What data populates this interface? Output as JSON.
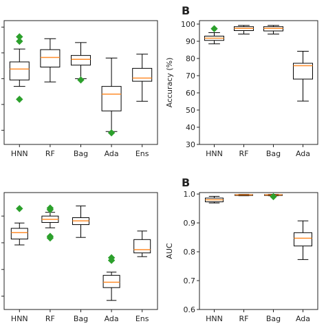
{
  "chart_data": [
    {
      "type": "box",
      "panel_label": "",
      "ylabel": "",
      "categories": [
        "HNN",
        "RF",
        "Bag",
        "Ada",
        "Ens"
      ],
      "y_tick_labels": [],
      "boxes": [
        {
          "category": "HNN",
          "whisker_low": 59.8,
          "q1": 60.8,
          "median": 62.5,
          "q3": 63.6,
          "whisker_high": 65.6,
          "fliers": [
            67.5,
            66.8,
            57.8
          ]
        },
        {
          "category": "RF",
          "whisker_low": 60.5,
          "q1": 62.8,
          "median": 64.3,
          "q3": 65.5,
          "whisker_high": 67.2,
          "fliers": []
        },
        {
          "category": "Bag",
          "whisker_low": 61.0,
          "q1": 63.1,
          "median": 64.0,
          "q3": 64.6,
          "whisker_high": 66.6,
          "fliers": [
            60.8
          ]
        },
        {
          "category": "Ada",
          "whisker_low": 52.8,
          "q1": 56.0,
          "median": 58.6,
          "q3": 59.8,
          "whisker_high": 64.2,
          "fliers": [
            52.6
          ]
        },
        {
          "category": "Ens",
          "whisker_low": 57.5,
          "q1": 60.6,
          "median": 61.1,
          "q3": 62.6,
          "whisker_high": 64.8,
          "fliers": []
        }
      ]
    },
    {
      "type": "box",
      "panel_label": "B",
      "ylabel": "Accuracy (%)",
      "categories": [
        "HNN",
        "RF",
        "Bag",
        "Ada"
      ],
      "y_tick_labels": [
        "30",
        "40",
        "50",
        "60",
        "70",
        "80",
        "90",
        "100"
      ],
      "ylim": [
        30,
        102
      ],
      "boxes": [
        {
          "category": "HNN",
          "whisker_low": 88.5,
          "q1": 90.5,
          "median": 91.8,
          "q3": 93.0,
          "whisker_high": 95.0,
          "fliers": [
            97.3
          ]
        },
        {
          "category": "RF",
          "whisker_low": 94.2,
          "q1": 96.2,
          "median": 97.5,
          "q3": 98.5,
          "whisker_high": 99.2,
          "fliers": []
        },
        {
          "category": "Bag",
          "whisker_low": 94.2,
          "q1": 96.0,
          "median": 97.5,
          "q3": 98.5,
          "whisker_high": 99.2,
          "fliers": []
        },
        {
          "category": "Ada",
          "whisker_low": 55.2,
          "q1": 68.0,
          "median": 75.8,
          "q3": 77.2,
          "whisker_high": 84.2,
          "fliers": []
        }
      ]
    },
    {
      "type": "box",
      "panel_label": "",
      "ylabel": "",
      "categories": [
        "HNN",
        "RF",
        "Bag",
        "Ada",
        "Ens"
      ],
      "y_tick_labels": [],
      "boxes": [
        {
          "category": "HNN",
          "whisker_low": 0.934,
          "q1": 0.945,
          "median": 0.957,
          "q3": 0.965,
          "whisker_high": 0.975,
          "fliers": [
            1.002
          ]
        },
        {
          "category": "RF",
          "whisker_low": 0.966,
          "q1": 0.976,
          "median": 0.982,
          "q3": 0.988,
          "whisker_high": 0.995,
          "fliers": [
            1.003,
            1.0,
            0.95,
            0.947
          ]
        },
        {
          "category": "Bag",
          "whisker_low": 0.948,
          "q1": 0.972,
          "median": 0.979,
          "q3": 0.985,
          "whisker_high": 1.007,
          "fliers": []
        },
        {
          "category": "Ada",
          "whisker_low": 0.83,
          "q1": 0.854,
          "median": 0.864,
          "q3": 0.877,
          "whisker_high": 0.883,
          "fliers": [
            0.91,
            0.905
          ]
        },
        {
          "category": "Ens",
          "whisker_low": 0.912,
          "q1": 0.919,
          "median": 0.925,
          "q3": 0.944,
          "whisker_high": 0.96,
          "fliers": []
        }
      ]
    },
    {
      "type": "box",
      "panel_label": "B",
      "ylabel": "AUC",
      "categories": [
        "HNN",
        "RF",
        "Bag",
        "Ada"
      ],
      "y_tick_labels": [
        "0.6",
        "0.7",
        "0.8",
        "0.9",
        "1.0"
      ],
      "ylim": [
        0.6,
        1.005
      ],
      "boxes": [
        {
          "category": "HNN",
          "whisker_low": 0.969,
          "q1": 0.973,
          "median": 0.98,
          "q3": 0.986,
          "whisker_high": 0.992,
          "fliers": []
        },
        {
          "category": "RF",
          "whisker_low": 0.994,
          "q1": 0.995,
          "median": 0.997,
          "q3": 0.998,
          "whisker_high": 0.999,
          "fliers": []
        },
        {
          "category": "Bag",
          "whisker_low": 0.994,
          "q1": 0.995,
          "median": 0.997,
          "q3": 0.998,
          "whisker_high": 0.999,
          "fliers": [
            0.991
          ]
        },
        {
          "category": "Ada",
          "whisker_low": 0.773,
          "q1": 0.82,
          "median": 0.847,
          "q3": 0.866,
          "whisker_high": 0.907,
          "fliers": []
        }
      ]
    }
  ],
  "colors": {
    "median": "#ff8c2a",
    "flier": "#2ca02c",
    "box": "#000000",
    "axes": "#222222"
  }
}
